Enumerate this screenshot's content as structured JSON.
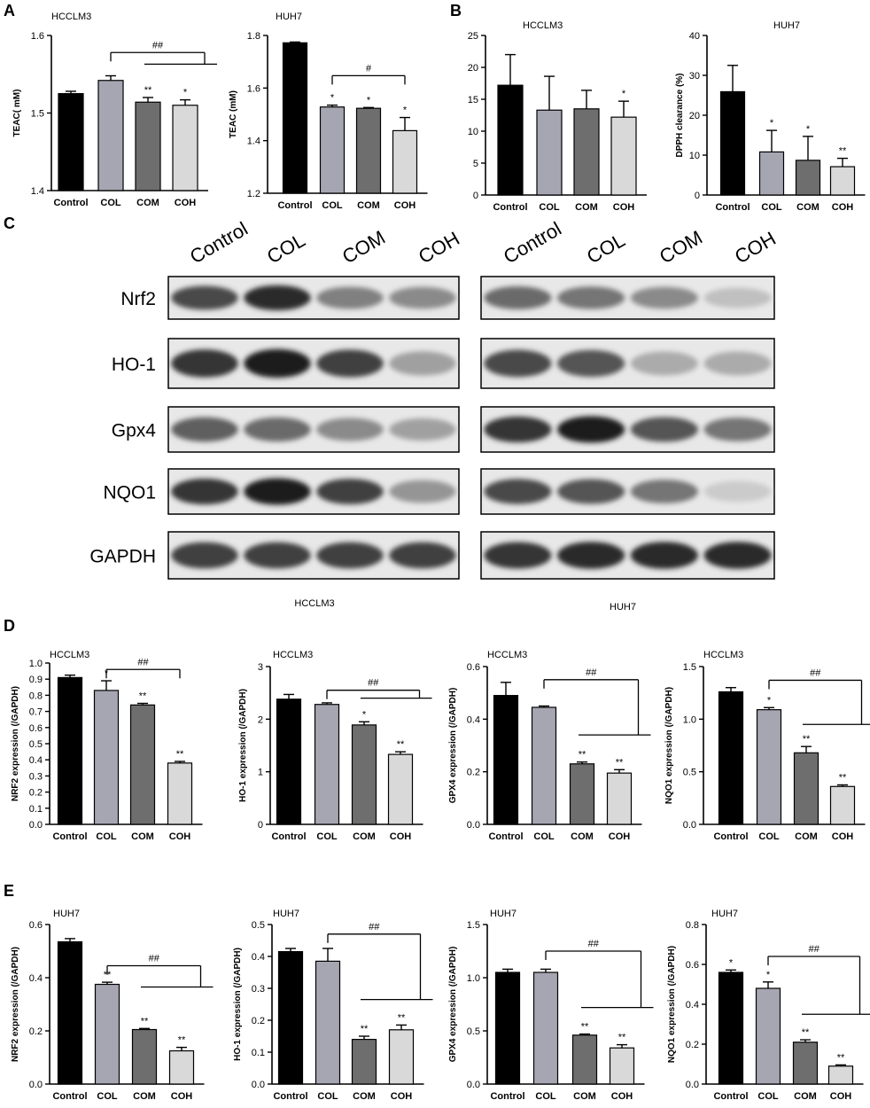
{
  "panel_letters": [
    "A",
    "B",
    "C",
    "D",
    "E"
  ],
  "colors": {
    "bars": [
      "#000000",
      "#a6a6b3",
      "#6e6e6e",
      "#d9d9d9"
    ],
    "axis": "#000000"
  },
  "chart_data": [
    {
      "id": "A1",
      "type": "bar",
      "title": "HCCLM3",
      "ylabel": "TEAC( mM)",
      "categories": [
        "Control",
        "COL",
        "COM",
        "COH"
      ],
      "values": [
        1.525,
        1.542,
        1.514,
        1.51
      ],
      "errors": [
        0.003,
        0.006,
        0.006,
        0.007
      ],
      "ylim": [
        1.4,
        1.6
      ],
      "yticks": [
        "1.4",
        "1.5",
        "1.6"
      ],
      "ytick_values": [
        1.4,
        1.5,
        1.6
      ],
      "significance": [
        "",
        "",
        "**",
        "*"
      ],
      "bracket_label": "##",
      "bracket_from": 1,
      "bracket_to": [
        2,
        3
      ],
      "bracket_y": 1.578,
      "bracket_drop": 1.563
    },
    {
      "id": "A2",
      "type": "bar",
      "title": "HUH7",
      "ylabel": "TEAC (mM)",
      "categories": [
        "Control",
        "COL",
        "COM",
        "COH"
      ],
      "values": [
        1.772,
        1.528,
        1.523,
        1.438
      ],
      "errors": [
        0.003,
        0.007,
        0.003,
        0.05
      ],
      "ylim": [
        1.2,
        1.8
      ],
      "yticks": [
        "1.2",
        "1.4",
        "1.6",
        "1.8"
      ],
      "ytick_values": [
        1.2,
        1.4,
        1.6,
        1.8
      ],
      "significance": [
        "",
        "*",
        "*",
        "*"
      ],
      "bracket_label": "#",
      "bracket_from": 1,
      "bracket_to": [
        3
      ],
      "bracket_y": 1.647,
      "bracket_drop": 1.612
    },
    {
      "id": "B1",
      "type": "bar",
      "title": "HCCLM3",
      "ylabel": "",
      "categories": [
        "Control",
        "COL",
        "COM",
        "COH"
      ],
      "values": [
        17.2,
        13.3,
        13.5,
        12.2
      ],
      "errors": [
        4.8,
        5.3,
        2.9,
        2.5
      ],
      "ylim": [
        0,
        25
      ],
      "yticks": [
        "0",
        "5",
        "10",
        "15",
        "20",
        "25"
      ],
      "ytick_values": [
        0,
        5,
        10,
        15,
        20,
        25
      ],
      "significance": [
        "",
        "",
        "",
        "*"
      ]
    },
    {
      "id": "B2",
      "type": "bar",
      "title": "HUH7",
      "ylabel": "DPPH clearance (%)",
      "categories": [
        "Control",
        "COL",
        "COM",
        "COH"
      ],
      "values": [
        25.9,
        10.8,
        8.7,
        7.1
      ],
      "errors": [
        6.6,
        5.4,
        6.0,
        2.1
      ],
      "ylim": [
        0,
        40
      ],
      "yticks": [
        "0",
        "10",
        "20",
        "30",
        "40"
      ],
      "ytick_values": [
        0,
        10,
        20,
        30,
        40
      ],
      "significance": [
        "",
        "*",
        "*",
        "**"
      ]
    },
    {
      "id": "D1",
      "type": "bar",
      "title": "HCCLM3",
      "ylabel": "NRF2 expression (/GAPDH)",
      "categories": [
        "Control",
        "COL",
        "COM",
        "COH"
      ],
      "values": [
        0.91,
        0.83,
        0.74,
        0.38
      ],
      "errors": [
        0.015,
        0.06,
        0.01,
        0.01
      ],
      "ylim": [
        0,
        1.0
      ],
      "yticks": [
        "0.0",
        "0.1",
        "0.2",
        "0.3",
        "0.4",
        "0.5",
        "0.6",
        "0.7",
        "0.8",
        "0.9",
        "1.0"
      ],
      "ytick_values": [
        0,
        0.1,
        0.2,
        0.3,
        0.4,
        0.5,
        0.6,
        0.7,
        0.8,
        0.9,
        1.0
      ],
      "significance": [
        "",
        "*",
        "**",
        "**"
      ],
      "bracket_label": "##",
      "bracket_from": 1,
      "bracket_to": [
        3
      ],
      "bracket_y": 0.96,
      "bracket_drop": 0.93
    },
    {
      "id": "D2",
      "type": "bar",
      "title": "HCCLM3",
      "ylabel": "HO-1 expression (/GAPDH)",
      "categories": [
        "Control",
        "COL",
        "COM",
        "COH"
      ],
      "values": [
        2.38,
        2.28,
        1.89,
        1.33
      ],
      "errors": [
        0.09,
        0.03,
        0.06,
        0.05
      ],
      "ylim": [
        0,
        3
      ],
      "yticks": [
        "0",
        "1",
        "2",
        "3"
      ],
      "ytick_values": [
        0,
        1,
        2,
        3
      ],
      "significance": [
        "",
        "",
        "*",
        "**"
      ],
      "bracket_label": "##",
      "bracket_from": 1,
      "bracket_to": [
        2,
        3
      ],
      "bracket_y": 2.55,
      "bracket_drop": 2.4
    },
    {
      "id": "D3",
      "type": "bar",
      "title": "HCCLM3",
      "ylabel": "GPX4 expression (/GAPDH)",
      "categories": [
        "Control",
        "COL",
        "COM",
        "COH"
      ],
      "values": [
        0.49,
        0.445,
        0.23,
        0.195
      ],
      "errors": [
        0.05,
        0.005,
        0.007,
        0.013
      ],
      "ylim": [
        0,
        0.6
      ],
      "yticks": [
        "0.0",
        "0.2",
        "0.4",
        "0.6"
      ],
      "ytick_values": [
        0,
        0.2,
        0.4,
        0.6
      ],
      "significance": [
        "",
        "",
        "**",
        "**"
      ],
      "bracket_label": "##",
      "bracket_from": 1,
      "bracket_to": [
        2,
        3
      ],
      "bracket_y": 0.55,
      "bracket_drop": 0.34
    },
    {
      "id": "D4",
      "type": "bar",
      "title": "HCCLM3",
      "ylabel": "NQO1 expression (/GAPDH)",
      "categories": [
        "Control",
        "COL",
        "COM",
        "COH"
      ],
      "values": [
        1.26,
        1.09,
        0.68,
        0.36
      ],
      "errors": [
        0.04,
        0.02,
        0.06,
        0.015
      ],
      "ylim": [
        0,
        1.5
      ],
      "yticks": [
        "0.0",
        "0.5",
        "1.0",
        "1.5"
      ],
      "ytick_values": [
        0,
        0.5,
        1.0,
        1.5
      ],
      "significance": [
        "",
        "*",
        "**",
        "**"
      ],
      "bracket_label": "##",
      "bracket_from": 1,
      "bracket_to": [
        2,
        3
      ],
      "bracket_y": 1.37,
      "bracket_drop": 0.95
    },
    {
      "id": "E1",
      "type": "bar",
      "title": "HUH7",
      "ylabel": "NRF2 expression (/GAPDH)",
      "categories": [
        "Control",
        "COL",
        "COM",
        "COH"
      ],
      "values": [
        0.535,
        0.375,
        0.205,
        0.125
      ],
      "errors": [
        0.012,
        0.008,
        0.004,
        0.013
      ],
      "ylim": [
        0,
        0.6
      ],
      "yticks": [
        "0.0",
        "0.2",
        "0.4",
        "0.6"
      ],
      "ytick_values": [
        0,
        0.2,
        0.4,
        0.6
      ],
      "significance": [
        "",
        "**",
        "**",
        "**"
      ],
      "bracket_label": "##",
      "bracket_from": 1,
      "bracket_to": [
        2,
        3
      ],
      "bracket_y": 0.445,
      "bracket_drop": 0.365
    },
    {
      "id": "E2",
      "type": "bar",
      "title": "HUH7",
      "ylabel": "HO-1 expression (/GAPDH)",
      "categories": [
        "Control",
        "COL",
        "COM",
        "COH"
      ],
      "values": [
        0.415,
        0.385,
        0.14,
        0.17
      ],
      "errors": [
        0.01,
        0.04,
        0.01,
        0.015
      ],
      "ylim": [
        0,
        0.5
      ],
      "yticks": [
        "0.0",
        "0.1",
        "0.2",
        "0.3",
        "0.4",
        "0.5"
      ],
      "ytick_values": [
        0,
        0.1,
        0.2,
        0.3,
        0.4,
        0.5
      ],
      "significance": [
        "",
        "",
        "**",
        "**"
      ],
      "bracket_label": "##",
      "bracket_from": 1,
      "bracket_to": [
        2,
        3
      ],
      "bracket_y": 0.47,
      "bracket_drop": 0.265
    },
    {
      "id": "E3",
      "type": "bar",
      "title": "HUH7",
      "ylabel": "GPX4 expression (/GAPDH)",
      "categories": [
        "Control",
        "COL",
        "COM",
        "COH"
      ],
      "values": [
        1.05,
        1.05,
        0.46,
        0.34
      ],
      "errors": [
        0.03,
        0.03,
        0.01,
        0.03
      ],
      "ylim": [
        0,
        1.5
      ],
      "yticks": [
        "0.0",
        "0.5",
        "1.0",
        "1.5"
      ],
      "ytick_values": [
        0,
        0.5,
        1.0,
        1.5
      ],
      "significance": [
        "",
        "",
        "**",
        "**"
      ],
      "bracket_label": "##",
      "bracket_from": 1,
      "bracket_to": [
        2,
        3
      ],
      "bracket_y": 1.25,
      "bracket_drop": 0.72
    },
    {
      "id": "E4",
      "type": "bar",
      "title": "HUH7",
      "ylabel": "NQO1 expression (/GAPDH)",
      "categories": [
        "Control",
        "COL",
        "COM",
        "COH"
      ],
      "values": [
        0.56,
        0.48,
        0.21,
        0.09
      ],
      "errors": [
        0.012,
        0.032,
        0.012,
        0.006
      ],
      "ylim": [
        0,
        0.8
      ],
      "yticks": [
        "0.0",
        "0.2",
        "0.4",
        "0.6",
        "0.8"
      ],
      "ytick_values": [
        0,
        0.2,
        0.4,
        0.6,
        0.8
      ],
      "significance": [
        "*",
        "*",
        "**",
        "**"
      ],
      "significance_note": "",
      "bracket_label": "##",
      "bracket_from": 1,
      "bracket_to": [
        2,
        3
      ],
      "bracket_y": 0.64,
      "bracket_drop": 0.35
    }
  ],
  "western_blot": {
    "lanes": [
      "Control",
      "COL",
      "COM",
      "COH"
    ],
    "proteins": [
      "Nrf2",
      "HO-1",
      "Gpx4",
      "NQO1",
      "GAPDH"
    ],
    "captions": [
      "HCCLM3",
      "HUH7"
    ],
    "intensity": {
      "left": [
        [
          0.75,
          0.9,
          0.5,
          0.45
        ],
        [
          0.85,
          0.95,
          0.8,
          0.35
        ],
        [
          0.65,
          0.6,
          0.45,
          0.35
        ],
        [
          0.85,
          0.95,
          0.8,
          0.4
        ],
        [
          0.8,
          0.8,
          0.8,
          0.8
        ]
      ],
      "right": [
        [
          0.6,
          0.55,
          0.45,
          0.2
        ],
        [
          0.75,
          0.7,
          0.3,
          0.3
        ],
        [
          0.85,
          0.95,
          0.7,
          0.55
        ],
        [
          0.75,
          0.7,
          0.55,
          0.15
        ],
        [
          0.85,
          0.9,
          0.9,
          0.9
        ]
      ]
    }
  }
}
